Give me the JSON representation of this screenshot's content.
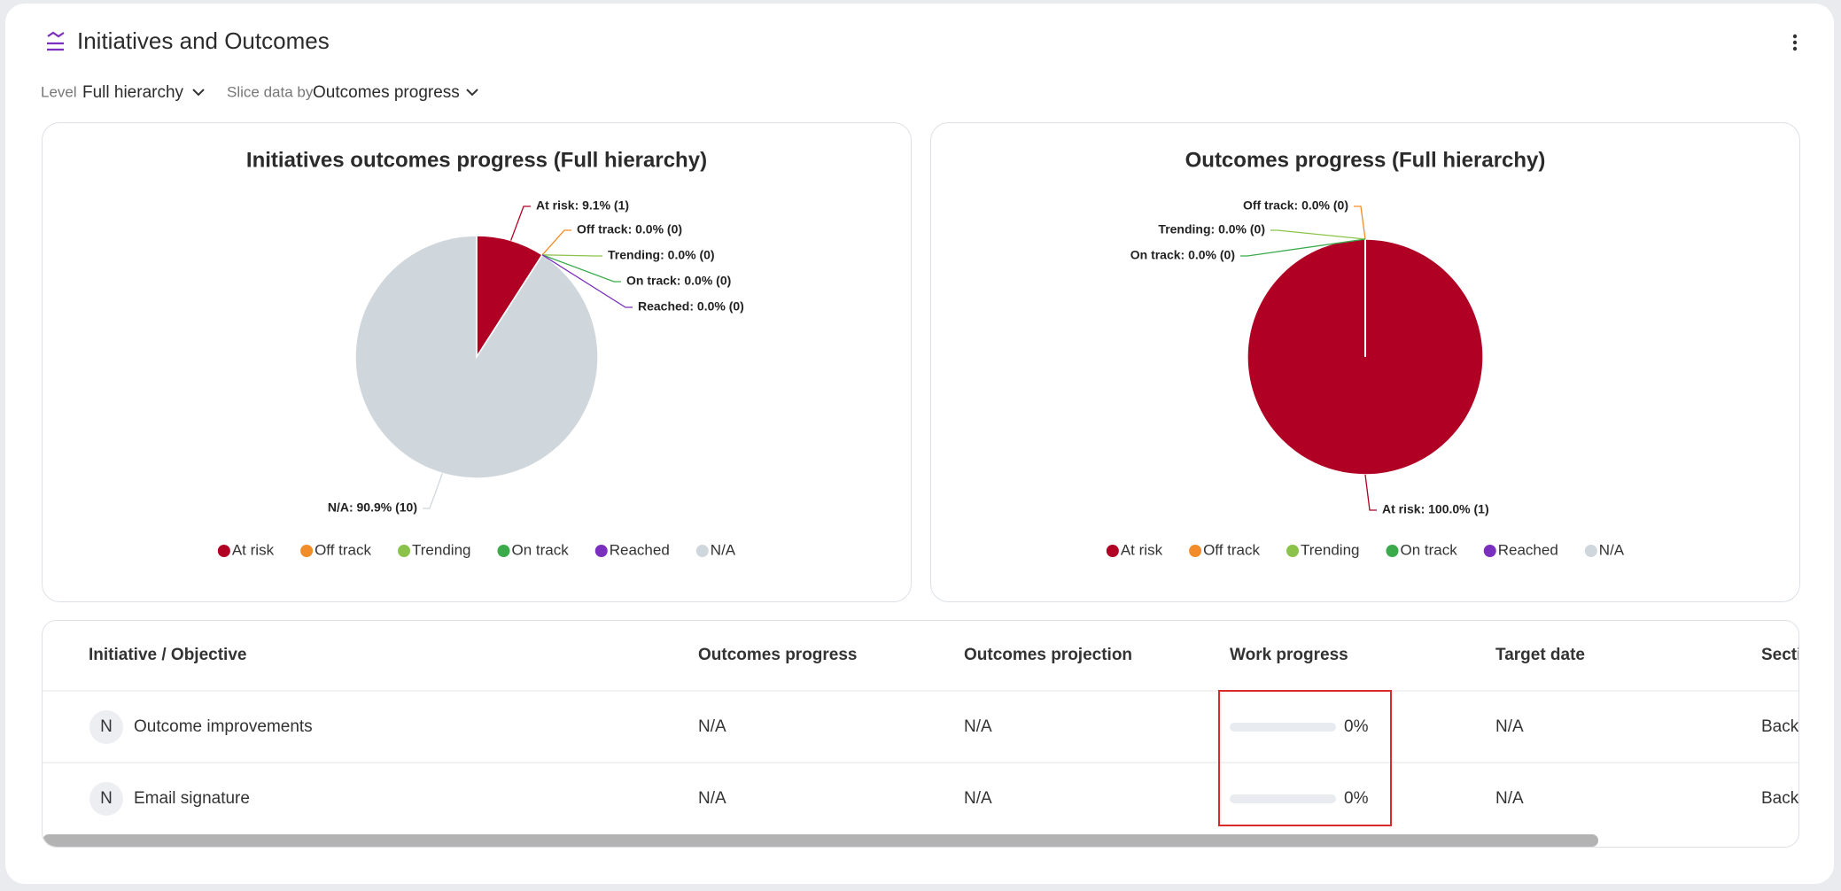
{
  "header": {
    "title": "Initiatives and Outcomes"
  },
  "filters": [
    {
      "label": "Level",
      "value": "Full hierarchy"
    },
    {
      "label": "Slice data by",
      "value": "Outcomes progress"
    }
  ],
  "chart_data": [
    {
      "type": "pie",
      "title": "Initiatives outcomes progress (Full hierarchy)",
      "categories": [
        "At risk",
        "Off track",
        "Trending",
        "On track",
        "Reached",
        "N/A"
      ],
      "values": [
        9.1,
        0,
        0,
        0,
        0,
        90.9
      ],
      "value_labels": [
        "At risk: 9.1% (1)",
        "Off track: 0.0% (0)",
        "Trending: 0.0% (0)",
        "On track: 0.0% (0)",
        "Reached: 0.0% (0)",
        "N/A: 90.9% (10)"
      ],
      "colors": [
        "#b00024",
        "#f28c28",
        "#8bc34a",
        "#3aaa4a",
        "#7b2fbe",
        "#d0d7dc"
      ],
      "legend": "bottom"
    },
    {
      "type": "pie",
      "title": "Outcomes progress (Full hierarchy)",
      "categories": [
        "At risk",
        "Off track",
        "Trending",
        "On track",
        "Reached",
        "N/A"
      ],
      "values": [
        100,
        0,
        0,
        0,
        0,
        0
      ],
      "value_labels": [
        "At risk: 100.0% (1)",
        "Off track: 0.0% (0)",
        "Trending: 0.0% (0)",
        "On track: 0.0% (0)",
        null,
        null
      ],
      "colors": [
        "#b00024",
        "#f28c28",
        "#8bc34a",
        "#3aaa4a",
        "#7b2fbe",
        "#d0d7dc"
      ],
      "legend": "bottom"
    }
  ],
  "table": {
    "columns": [
      "Initiative / Objective",
      "Outcomes progress",
      "Outcomes projection",
      "Work progress",
      "Target date",
      "Section"
    ],
    "rows": [
      {
        "avatar": "N",
        "name": "Outcome improvements",
        "outcomes_progress": "N/A",
        "outcomes_projection": "N/A",
        "work_progress": 0,
        "work_progress_label": "0%",
        "target_date": "N/A",
        "section": "Backlog"
      },
      {
        "avatar": "N",
        "name": "Email signature",
        "outcomes_progress": "N/A",
        "outcomes_projection": "N/A",
        "work_progress": 0,
        "work_progress_label": "0%",
        "target_date": "N/A",
        "section": "Backlog"
      }
    ]
  }
}
